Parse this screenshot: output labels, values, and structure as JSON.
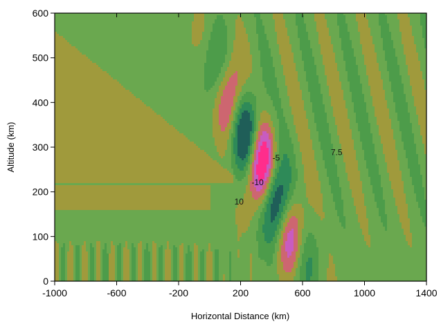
{
  "chart_data": {
    "type": "heatmap",
    "subtype": "filled-contour",
    "title": "",
    "xlabel": "Horizontal Distance (km)",
    "ylabel": "Altitude (km)",
    "xlim": [
      -1000,
      1400
    ],
    "ylim": [
      0,
      600
    ],
    "x_ticks": [
      -1000,
      -600,
      -200,
      200,
      600,
      1000,
      1400
    ],
    "y_ticks": [
      0,
      100,
      200,
      300,
      400,
      500,
      600
    ],
    "grid": false,
    "legend": "none",
    "colors": {
      "negative_strong": "#1f5e58",
      "negative_mid": "#2e8a58",
      "negative_weak": "#4d9c4a",
      "background_green": "#6aa84f",
      "background_olive": "#a09a3c",
      "positive_weak": "#cd6670",
      "positive_mid": "#c85cc0",
      "positive_strong": "#ff2d8c",
      "contour_line": "#000000"
    },
    "contour_labels": [
      {
        "text": "10",
        "x": 190,
        "y": 172
      },
      {
        "text": "-10",
        "x": 310,
        "y": 215
      },
      {
        "text": "-5",
        "x": 430,
        "y": 270
      },
      {
        "text": "7.5",
        "x": 820,
        "y": 282
      }
    ],
    "wave_packet": {
      "description_value": "tilted gravity wave packet",
      "center_x": 330,
      "center_z": 255,
      "phase_tilt_km_per_km": -0.6,
      "peak_amplitude": 15
    }
  }
}
